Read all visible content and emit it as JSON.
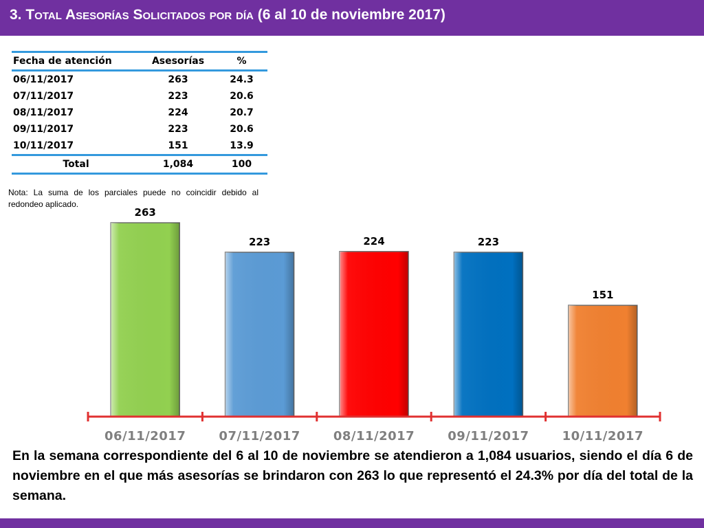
{
  "header": {
    "title_number": "3.",
    "title_text": "Total Asesorías Solicitados por día",
    "title_range": "(6 al 10 de noviembre 2017)"
  },
  "table": {
    "headers": [
      "Fecha de atención",
      "Asesorías",
      "%"
    ],
    "rows": [
      [
        "06/11/2017",
        "263",
        "24.3"
      ],
      [
        "07/11/2017",
        "223",
        "20.6"
      ],
      [
        "08/11/2017",
        "224",
        "20.7"
      ],
      [
        "09/11/2017",
        "223",
        "20.6"
      ],
      [
        "10/11/2017",
        "151",
        "13.9"
      ]
    ],
    "total": [
      "Total",
      "1,084",
      "100"
    ]
  },
  "note": "Nota: La suma de los parciales puede no coincidir debido al redondeo aplicado.",
  "chart_data": {
    "type": "bar",
    "categories": [
      "06/11/2017",
      "07/11/2017",
      "08/11/2017",
      "09/11/2017",
      "10/11/2017"
    ],
    "values": [
      263,
      223,
      224,
      223,
      151
    ],
    "data_labels": [
      "263",
      "223",
      "224",
      "223",
      "151"
    ],
    "colors": [
      "#92d050",
      "#5b9bd5",
      "#ff0000",
      "#0070c0",
      "#f08030"
    ],
    "axis_color": "#e03030",
    "ylim": [
      0,
      280
    ],
    "title": "",
    "xlabel": "",
    "ylabel": "",
    "grid": false,
    "legend": "none"
  },
  "summary": "En la semana correspondiente del 6 al 10 de noviembre se atendieron a 1,084 usuarios, siendo el día 6 de noviembre en el que más asesorías se brindaron con 263 lo que representó el 24.3% por día del total de la semana.",
  "colors": {
    "header_bg": "#7030a0",
    "table_rule": "#3399dd"
  }
}
